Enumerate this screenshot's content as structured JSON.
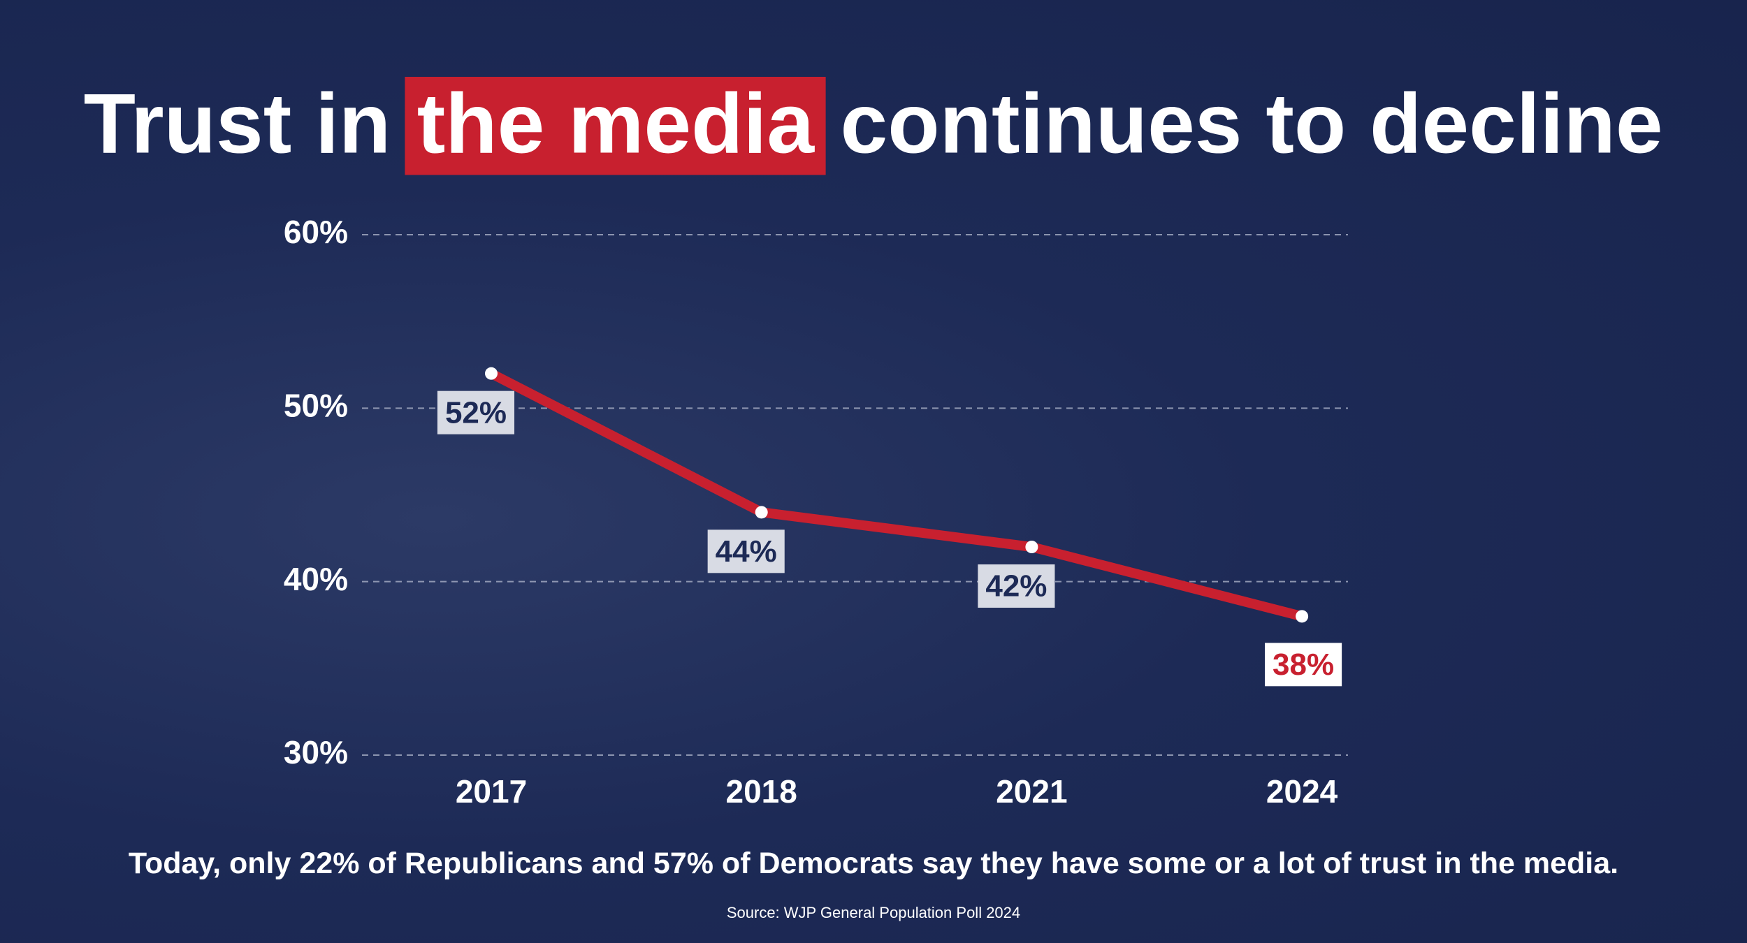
{
  "chart_data": {
    "type": "line",
    "title_parts": [
      "Trust in",
      "the media",
      "continues to decline"
    ],
    "categories": [
      "2017",
      "2018",
      "2021",
      "2024"
    ],
    "series": [
      {
        "name": "Trust in the media",
        "color": "#c8202f",
        "values": [
          52,
          44,
          42,
          38
        ],
        "value_labels": [
          "52%",
          "44%",
          "42%",
          "38%"
        ]
      }
    ],
    "ylim": [
      30,
      60
    ],
    "yticks": [
      {
        "value": 30,
        "label": "30%"
      },
      {
        "value": 40,
        "label": "40%"
      },
      {
        "value": 50,
        "label": "50%"
      },
      {
        "value": 60,
        "label": "60%"
      }
    ],
    "grid": true,
    "note": "Today, only 22% of Republicans and 57% of Democrats say they have some or a lot of trust in the media.",
    "source": "Source: WJP General Population Poll 2024"
  }
}
